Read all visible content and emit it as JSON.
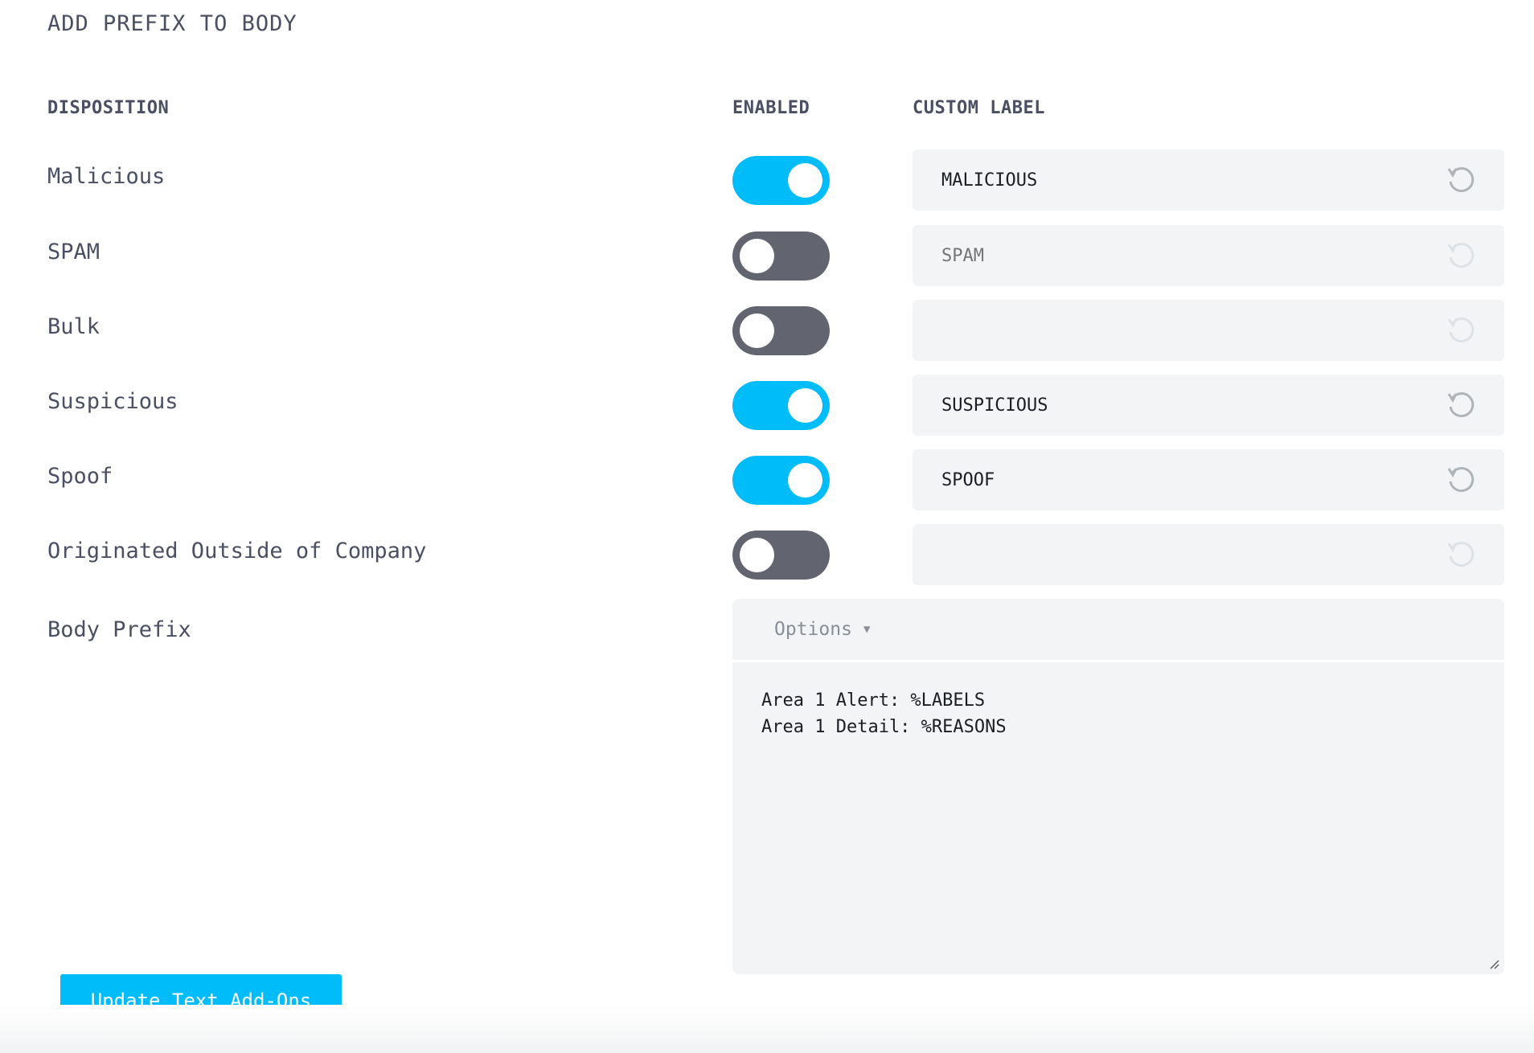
{
  "title": "ADD PREFIX TO BODY",
  "headers": {
    "disposition": "DISPOSITION",
    "enabled": "ENABLED",
    "custom_label": "CUSTOM LABEL"
  },
  "rows": [
    {
      "label": "Malicious",
      "enabled": true,
      "value": "MALICIOUS",
      "placeholder": ""
    },
    {
      "label": "SPAM",
      "enabled": false,
      "value": "",
      "placeholder": "SPAM"
    },
    {
      "label": "Bulk",
      "enabled": false,
      "value": "",
      "placeholder": ""
    },
    {
      "label": "Suspicious",
      "enabled": true,
      "value": "SUSPICIOUS",
      "placeholder": ""
    },
    {
      "label": "Spoof",
      "enabled": true,
      "value": "SPOOF",
      "placeholder": ""
    },
    {
      "label": "Originated Outside of Company",
      "enabled": false,
      "value": "",
      "placeholder": ""
    }
  ],
  "body_prefix": {
    "label": "Body Prefix",
    "options_label": "Options",
    "text": "Area 1 Alert: %LABELS\nArea 1 Detail: %REASONS"
  },
  "submit_label": "Update Text Add-Ons",
  "colors": {
    "accent": "#00bdfa",
    "toggle_off": "#62656f",
    "field_bg": "#f2f4f5"
  },
  "icons": {
    "reset": "reset-undo-icon",
    "dropdown": "caret-down-icon",
    "resize": "resize-grip-icon"
  }
}
